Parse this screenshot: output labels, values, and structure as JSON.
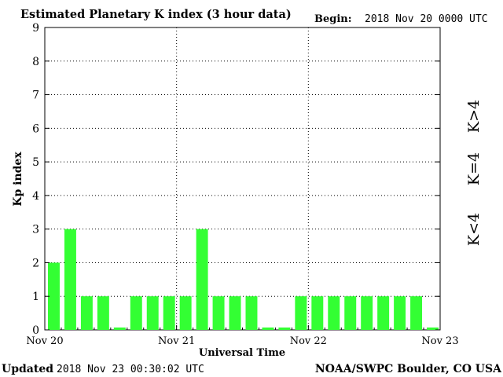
{
  "header": {
    "title": "Estimated Planetary K index (3 hour data)",
    "begin_label": "Begin:",
    "begin_value": "2018 Nov 20 0000 UTC"
  },
  "footer": {
    "updated_label": "Updated",
    "updated_value": "2018 Nov 23 00:30:02 UTC",
    "credit": "NOAA/SWPC Boulder, CO USA"
  },
  "legend": [
    {
      "label": "K<4",
      "color": "#33ff33"
    },
    {
      "label": "K=4",
      "color": "#ffcc00"
    },
    {
      "label": "K>4",
      "color": "#ff3300"
    }
  ],
  "chart_data": {
    "type": "bar",
    "title": "Estimated Planetary K index (3 hour data)",
    "xlabel": "Universal Time",
    "ylabel": "Kp index",
    "ylim": [
      0,
      9
    ],
    "yticks": [
      0,
      1,
      2,
      3,
      4,
      5,
      6,
      7,
      8,
      9
    ],
    "xticks": [
      "Nov 20",
      "Nov 21",
      "Nov 22",
      "Nov 23"
    ],
    "grid": true,
    "values": [
      2,
      3,
      1,
      1,
      0.07,
      1,
      1,
      1,
      1,
      3,
      1,
      1,
      1,
      0.07,
      0.07,
      1,
      1,
      1,
      1,
      1,
      1,
      1,
      1,
      0.07
    ],
    "bar_color": "#33ff33"
  }
}
